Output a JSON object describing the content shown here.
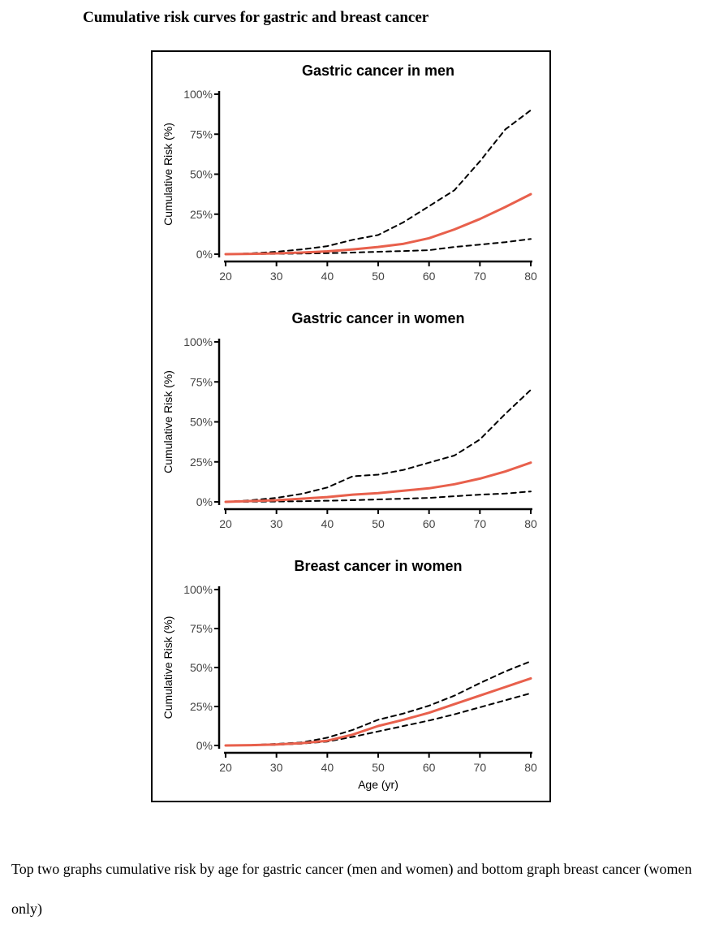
{
  "page": {
    "title": "Cumulative risk curves for gastric and breast cancer",
    "caption": "Top two graphs cumulative risk by age for gastric cancer (men and women) and bottom graph breast cancer (women only)"
  },
  "colors": {
    "point_estimate": "#e8604c",
    "confidence_bounds": "#000000",
    "axis": "#000000",
    "tick_label": "#444444"
  },
  "chart_data": [
    {
      "type": "line",
      "title": "Gastric cancer in men",
      "xlabel": "",
      "ylabel": "Cumulative Risk (%)",
      "xlim": [
        20,
        80
      ],
      "ylim": [
        0,
        100
      ],
      "xticks": [
        20,
        30,
        40,
        50,
        60,
        70,
        80
      ],
      "yticks": [
        0,
        25,
        50,
        75,
        100
      ],
      "ytick_labels": [
        "0%",
        "25%",
        "50%",
        "75%",
        "100%"
      ],
      "grid": false,
      "x": [
        20,
        25,
        30,
        35,
        40,
        45,
        50,
        55,
        60,
        65,
        70,
        75,
        80
      ],
      "series": [
        {
          "style": "solid",
          "color": "#e8604c",
          "values": [
            0,
            0.2,
            0.5,
            1,
            1.8,
            3,
            4.5,
            6.5,
            10,
            15.5,
            22,
            29.5,
            37.5
          ]
        },
        {
          "style": "dashed",
          "color": "#000000",
          "values": [
            0,
            0.5,
            1.5,
            3,
            5,
            9,
            12,
            20,
            30,
            40,
            58,
            78,
            90
          ]
        },
        {
          "style": "dashed",
          "color": "#000000",
          "values": [
            0,
            0.1,
            0.2,
            0.4,
            0.6,
            1,
            1.5,
            2,
            2.5,
            4.5,
            6,
            7.5,
            9.5
          ]
        }
      ]
    },
    {
      "type": "line",
      "title": "Gastric cancer in women",
      "xlabel": "",
      "ylabel": "Cumulative Risk (%)",
      "xlim": [
        20,
        80
      ],
      "ylim": [
        0,
        100
      ],
      "xticks": [
        20,
        30,
        40,
        50,
        60,
        70,
        80
      ],
      "yticks": [
        0,
        25,
        50,
        75,
        100
      ],
      "ytick_labels": [
        "0%",
        "25%",
        "50%",
        "75%",
        "100%"
      ],
      "grid": false,
      "x": [
        20,
        25,
        30,
        35,
        40,
        45,
        50,
        55,
        60,
        65,
        70,
        75,
        80
      ],
      "series": [
        {
          "style": "solid",
          "color": "#e8604c",
          "values": [
            0,
            0.5,
            1,
            2,
            3,
            4.5,
            5.5,
            7,
            8.5,
            11,
            14.5,
            19,
            24.5
          ]
        },
        {
          "style": "dashed",
          "color": "#000000",
          "values": [
            0,
            1,
            2.5,
            5,
            9,
            16,
            17,
            20,
            24.5,
            29,
            39,
            55,
            70
          ]
        },
        {
          "style": "dashed",
          "color": "#000000",
          "values": [
            0,
            0.1,
            0.2,
            0.4,
            0.7,
            1,
            1.5,
            2,
            2.5,
            3.5,
            4.5,
            5.2,
            6.5
          ]
        }
      ]
    },
    {
      "type": "line",
      "title": "Breast cancer in women",
      "xlabel": "Age (yr)",
      "ylabel": "Cumulative Risk (%)",
      "xlim": [
        20,
        80
      ],
      "ylim": [
        0,
        100
      ],
      "xticks": [
        20,
        30,
        40,
        50,
        60,
        70,
        80
      ],
      "yticks": [
        0,
        25,
        50,
        75,
        100
      ],
      "ytick_labels": [
        "0%",
        "25%",
        "50%",
        "75%",
        "100%"
      ],
      "grid": false,
      "x": [
        20,
        25,
        30,
        35,
        40,
        45,
        50,
        55,
        60,
        65,
        70,
        75,
        80
      ],
      "series": [
        {
          "style": "solid",
          "color": "#e8604c",
          "values": [
            0,
            0.2,
            0.6,
            1.5,
            3,
            7,
            12.5,
            16.5,
            21,
            26.5,
            32,
            37.5,
            43
          ]
        },
        {
          "style": "dashed",
          "color": "#000000",
          "values": [
            0,
            0.3,
            1,
            2,
            5,
            10,
            16.5,
            20.5,
            25.5,
            32,
            40,
            47.5,
            54
          ]
        },
        {
          "style": "dashed",
          "color": "#000000",
          "values": [
            0,
            0.1,
            0.4,
            1.2,
            2.5,
            5.5,
            9,
            12.5,
            16,
            20,
            24.5,
            29,
            33.5
          ]
        }
      ]
    }
  ]
}
